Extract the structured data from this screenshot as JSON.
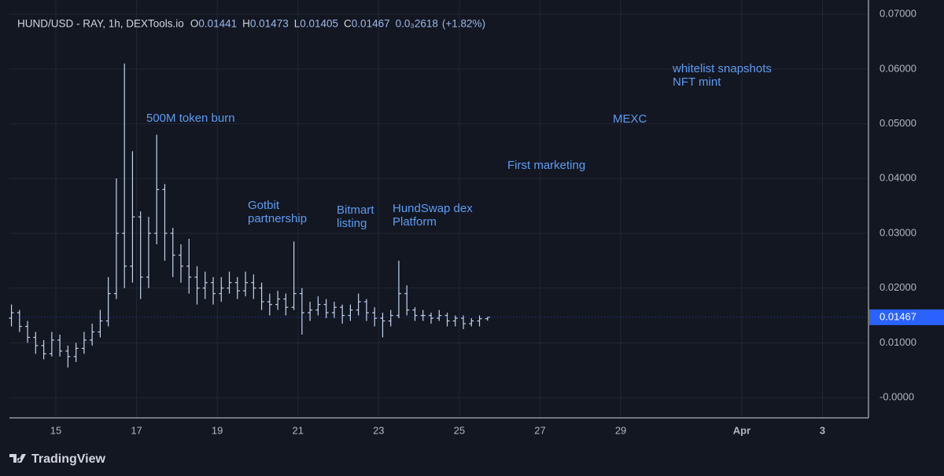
{
  "chart_data": {
    "type": "ohlc",
    "legend": {
      "symbol": "HUND/USD - RAY, 1h, DEXTools.io",
      "labels": [
        "O",
        "H",
        "L",
        "C"
      ],
      "values": [
        0.01441,
        0.01473,
        0.01405,
        0.01467
      ],
      "change": {
        "value": 0.0002618,
        "label": "0.0₃2618"
      },
      "change_pct": {
        "value": 1.82,
        "label": "(+1.82%)"
      }
    },
    "x": [
      13.9,
      14.1,
      14.3,
      14.5,
      14.7,
      14.9,
      15.1,
      15.3,
      15.5,
      15.7,
      15.9,
      16.1,
      16.3,
      16.5,
      16.7,
      16.9,
      17.1,
      17.3,
      17.5,
      17.7,
      17.9,
      18.1,
      18.3,
      18.5,
      18.7,
      18.9,
      19.1,
      19.3,
      19.5,
      19.7,
      19.9,
      20.1,
      20.3,
      20.5,
      20.7,
      20.9,
      21.1,
      21.3,
      21.5,
      21.7,
      21.9,
      22.1,
      22.3,
      22.5,
      22.7,
      22.9,
      23.1,
      23.3,
      23.5,
      23.7,
      23.9,
      24.1,
      24.3,
      24.5,
      24.7,
      24.9,
      25.1,
      25.3,
      25.5,
      25.7
    ],
    "open": [
      0.0145,
      0.0155,
      0.013,
      0.011,
      0.0095,
      0.008,
      0.0105,
      0.0085,
      0.0075,
      0.009,
      0.0105,
      0.012,
      0.014,
      0.019,
      0.03,
      0.024,
      0.033,
      0.022,
      0.03,
      0.038,
      0.03,
      0.026,
      0.024,
      0.022,
      0.02,
      0.021,
      0.019,
      0.02,
      0.021,
      0.0195,
      0.021,
      0.02,
      0.0175,
      0.017,
      0.018,
      0.0165,
      0.019,
      0.0155,
      0.016,
      0.017,
      0.0155,
      0.0165,
      0.015,
      0.016,
      0.0175,
      0.0155,
      0.0145,
      0.014,
      0.015,
      0.019,
      0.016,
      0.015,
      0.015,
      0.0145,
      0.015,
      0.014,
      0.0145,
      0.0135,
      0.014,
      0.01441
    ],
    "high": [
      0.017,
      0.016,
      0.014,
      0.012,
      0.0105,
      0.012,
      0.0115,
      0.0095,
      0.01,
      0.012,
      0.0135,
      0.016,
      0.022,
      0.04,
      0.061,
      0.045,
      0.034,
      0.033,
      0.048,
      0.039,
      0.031,
      0.028,
      0.029,
      0.024,
      0.023,
      0.022,
      0.022,
      0.023,
      0.022,
      0.023,
      0.0225,
      0.021,
      0.019,
      0.0195,
      0.019,
      0.0285,
      0.02,
      0.0175,
      0.0185,
      0.018,
      0.0175,
      0.017,
      0.017,
      0.019,
      0.018,
      0.0165,
      0.0155,
      0.016,
      0.025,
      0.0205,
      0.0165,
      0.016,
      0.0155,
      0.016,
      0.0155,
      0.015,
      0.015,
      0.0145,
      0.015,
      0.01473
    ],
    "low": [
      0.013,
      0.012,
      0.01,
      0.008,
      0.007,
      0.0075,
      0.0075,
      0.0055,
      0.0065,
      0.008,
      0.0095,
      0.011,
      0.013,
      0.018,
      0.02,
      0.021,
      0.018,
      0.02,
      0.028,
      0.025,
      0.022,
      0.021,
      0.019,
      0.017,
      0.018,
      0.017,
      0.0175,
      0.019,
      0.018,
      0.0185,
      0.018,
      0.016,
      0.015,
      0.016,
      0.015,
      0.016,
      0.0115,
      0.014,
      0.015,
      0.0145,
      0.0145,
      0.0135,
      0.014,
      0.015,
      0.014,
      0.013,
      0.011,
      0.013,
      0.0145,
      0.015,
      0.014,
      0.014,
      0.0135,
      0.014,
      0.013,
      0.013,
      0.0125,
      0.013,
      0.013,
      0.01405
    ],
    "close": [
      0.0155,
      0.013,
      0.011,
      0.0095,
      0.008,
      0.0105,
      0.0085,
      0.0075,
      0.009,
      0.0105,
      0.012,
      0.014,
      0.019,
      0.03,
      0.024,
      0.033,
      0.022,
      0.03,
      0.038,
      0.03,
      0.026,
      0.024,
      0.022,
      0.02,
      0.021,
      0.019,
      0.02,
      0.021,
      0.0195,
      0.021,
      0.02,
      0.0175,
      0.017,
      0.018,
      0.0165,
      0.019,
      0.0155,
      0.016,
      0.017,
      0.0155,
      0.0165,
      0.015,
      0.016,
      0.0175,
      0.0155,
      0.0145,
      0.014,
      0.015,
      0.019,
      0.016,
      0.015,
      0.015,
      0.0145,
      0.015,
      0.014,
      0.0145,
      0.0135,
      0.014,
      0.01441,
      0.01467
    ],
    "color": "#c3d3ee",
    "xlim": [
      13.85,
      35.14
    ],
    "xticks": [
      15,
      17,
      19,
      21,
      23,
      25,
      27,
      29,
      {
        "value": 32,
        "label": "Apr"
      },
      {
        "value": 34,
        "label": "3"
      }
    ],
    "ylim": [
      -0.0037,
      0.0726
    ],
    "yticks": [
      {
        "value": 0.07,
        "label": "0.07000"
      },
      {
        "value": 0.06,
        "label": "0.06000"
      },
      {
        "value": 0.05,
        "label": "0.05000"
      },
      {
        "value": 0.04,
        "label": "0.04000"
      },
      {
        "value": 0.03,
        "label": "0.03000"
      },
      {
        "value": 0.02,
        "label": "0.02000"
      },
      {
        "value": 0.01,
        "label": "0.01000"
      },
      {
        "value": 0,
        "label": "-0.0000"
      }
    ],
    "grid": true,
    "annotations": [
      "500M token burn",
      "Gotbit",
      "partnership",
      "Bitmart",
      "listing",
      "HundSwap dex",
      "Platform",
      "First marketing",
      "MEXC",
      "whitelist snapshots",
      "NFT mint"
    ],
    "brand": "TradingView"
  }
}
